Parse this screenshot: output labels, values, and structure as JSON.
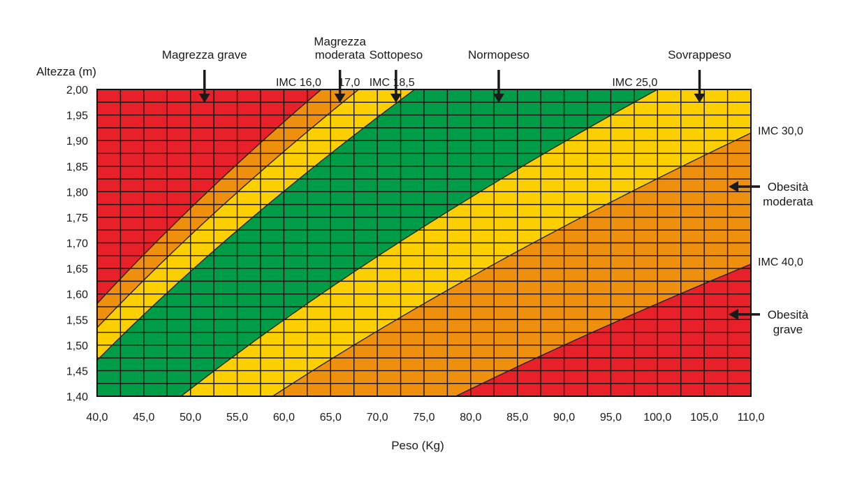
{
  "chart_data": {
    "type": "area",
    "title": "",
    "xlabel": "Peso (Kg)",
    "ylabel": "Altezza (m)",
    "xlim": [
      40,
      110
    ],
    "ylim": [
      1.4,
      2.0
    ],
    "x_ticks": [
      "40,0",
      "45,0",
      "50,0",
      "55,0",
      "60,0",
      "65,0",
      "70,0",
      "75,0",
      "80,0",
      "85,0",
      "90,0",
      "95,0",
      "100,0",
      "105,0",
      "110,0"
    ],
    "y_ticks": [
      "1,40",
      "1,45",
      "1,50",
      "1,55",
      "1,60",
      "1,65",
      "1,70",
      "1,75",
      "1,80",
      "1,85",
      "1,90",
      "1,95",
      "2,00"
    ],
    "grid": true,
    "imc_boundaries": [
      16.0,
      17.0,
      18.5,
      25.0,
      30.0,
      40.0
    ],
    "imc_labels": [
      {
        "text": "IMC 16,0",
        "value": 16.0
      },
      {
        "text": "17,0",
        "value": 17.0
      },
      {
        "text": "IMC 18,5",
        "value": 18.5
      },
      {
        "text": "IMC 25,0",
        "value": 25.0
      },
      {
        "text": "IMC 30,0",
        "value": 30.0
      },
      {
        "text": "IMC 40,0",
        "value": 40.0
      }
    ],
    "bands": [
      {
        "name": "Magrezza grave",
        "imc_min": 0,
        "imc_max": 16.0,
        "color": "#e8202a"
      },
      {
        "name": "Magrezza moderata",
        "imc_min": 16.0,
        "imc_max": 17.0,
        "color": "#ef8f0e"
      },
      {
        "name": "Sottopeso",
        "imc_min": 17.0,
        "imc_max": 18.5,
        "color": "#fcd000"
      },
      {
        "name": "Normopeso",
        "imc_min": 18.5,
        "imc_max": 25.0,
        "color": "#009d48"
      },
      {
        "name": "Sovrappeso",
        "imc_min": 25.0,
        "imc_max": 30.0,
        "color": "#fcd000"
      },
      {
        "name": "Obesità moderata",
        "imc_min": 30.0,
        "imc_max": 40.0,
        "color": "#ef8f0e"
      },
      {
        "name": "Obesità grave",
        "imc_min": 40.0,
        "imc_max": 100.0,
        "color": "#e8202a"
      }
    ],
    "annotations_top": [
      {
        "lines": [
          "Magrezza grave"
        ],
        "weight": 51.5
      },
      {
        "lines": [
          "Magrezza",
          "moderata"
        ],
        "weight": 66
      },
      {
        "lines": [
          "Sottopeso"
        ],
        "weight": 72
      },
      {
        "lines": [
          "Normopeso"
        ],
        "weight": 83
      },
      {
        "lines": [
          "Sovrappeso"
        ],
        "weight": 104.5
      }
    ],
    "annotations_right": [
      {
        "lines": [
          "Obesità",
          "moderata"
        ],
        "height": 1.81
      },
      {
        "lines": [
          "Obesità",
          "grave"
        ],
        "height": 1.56
      }
    ]
  }
}
